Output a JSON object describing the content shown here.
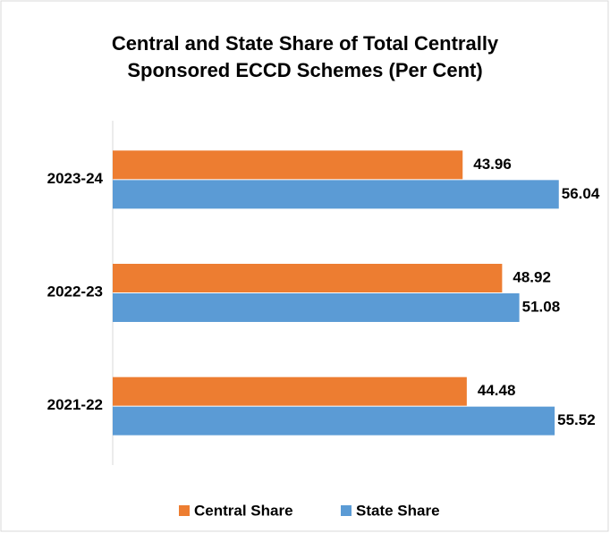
{
  "chart_data": {
    "type": "bar",
    "orientation": "horizontal",
    "title": "Central and State Share of Total Centrally Sponsored ECCD Schemes (Per Cent)",
    "categories": [
      "2023-24",
      "2022-23",
      "2021-22"
    ],
    "series": [
      {
        "name": "Central Share",
        "color": "#ed7d31",
        "values": [
          43.96,
          48.92,
          44.48
        ]
      },
      {
        "name": "State Share",
        "color": "#5b9bd5",
        "values": [
          56.04,
          51.08,
          55.52
        ]
      }
    ],
    "xlim": [
      0,
      60
    ],
    "legend": "bottom"
  }
}
